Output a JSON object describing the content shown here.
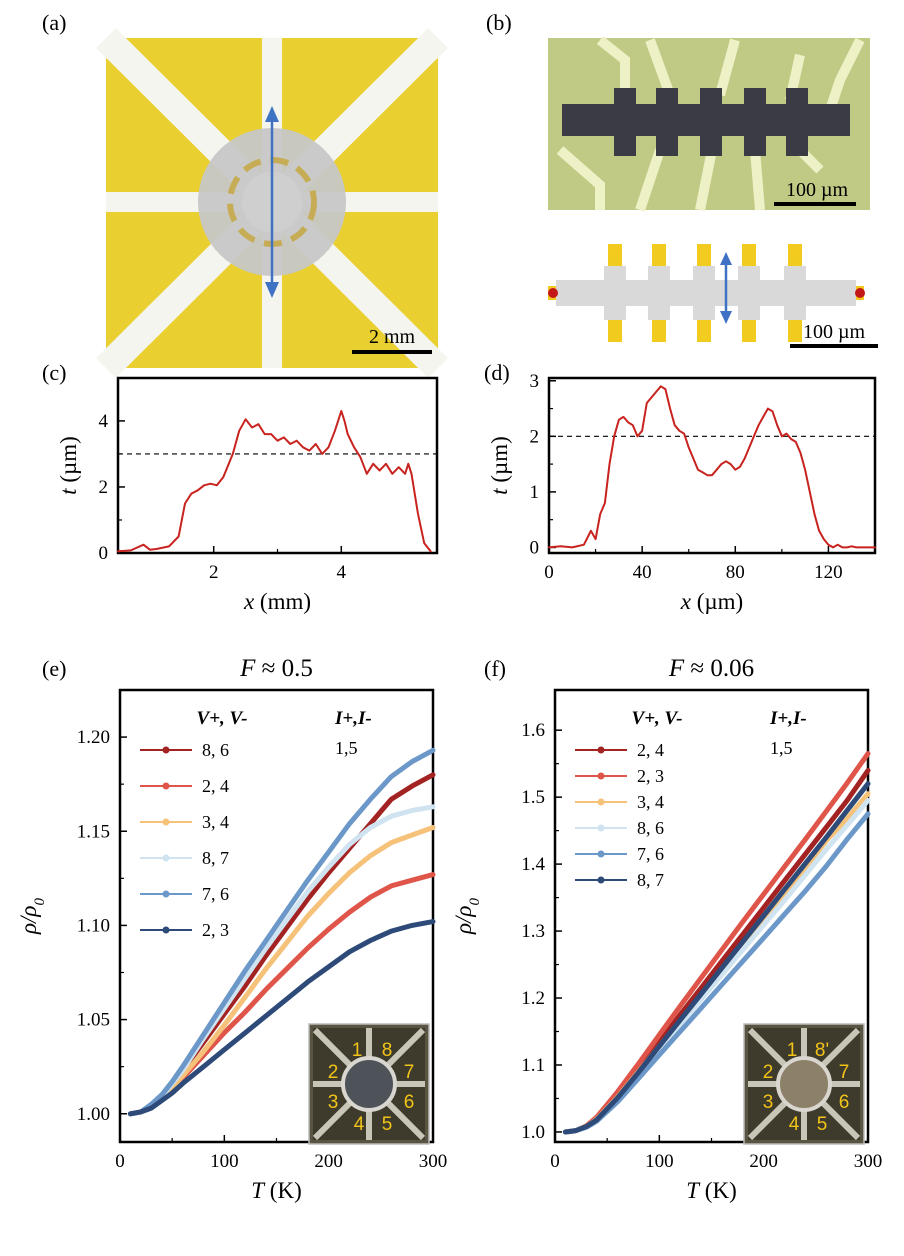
{
  "panels": {
    "a": "(a)",
    "b": "(b)",
    "c": "(c)",
    "d": "(d)",
    "e": "(e)",
    "f": "(f)"
  },
  "scalebars": {
    "a": "2 mm",
    "b_photo": "100 µm",
    "b_schematic": "100 µm"
  },
  "colors": {
    "gold": "#e9cf2f",
    "gray_disk": "#c7c7c7",
    "arrow": "#3f72c4",
    "profile": "#c8231f"
  },
  "chart_data": [
    {
      "id": "c",
      "type": "line",
      "xlabel": "x (mm)",
      "ylabel": "t (µm)",
      "xlim": [
        0.5,
        5.5
      ],
      "ylim": [
        0,
        5.3
      ],
      "xticks": [
        2,
        4
      ],
      "yticks": [
        0,
        2,
        4
      ],
      "xticklabels": [
        "2",
        "4"
      ],
      "yticklabels": [
        "0",
        "2",
        "4"
      ],
      "reference_line": 3,
      "series": [
        {
          "name": "thickness profile",
          "x": [
            0.5,
            0.7,
            0.9,
            1.0,
            1.1,
            1.3,
            1.45,
            1.55,
            1.65,
            1.75,
            1.85,
            1.95,
            2.05,
            2.15,
            2.3,
            2.4,
            2.5,
            2.6,
            2.7,
            2.8,
            2.9,
            3.0,
            3.1,
            3.2,
            3.3,
            3.4,
            3.5,
            3.6,
            3.7,
            3.8,
            3.9,
            4.0,
            4.05,
            4.1,
            4.2,
            4.3,
            4.4,
            4.5,
            4.6,
            4.7,
            4.8,
            4.9,
            5.0,
            5.05,
            5.1,
            5.2,
            5.3,
            5.4
          ],
          "y": [
            0.05,
            0.08,
            0.25,
            0.1,
            0.12,
            0.2,
            0.5,
            1.5,
            1.8,
            1.9,
            2.05,
            2.1,
            2.05,
            2.3,
            3.0,
            3.7,
            4.05,
            3.8,
            3.9,
            3.6,
            3.6,
            3.4,
            3.5,
            3.3,
            3.4,
            3.2,
            3.1,
            3.3,
            3.0,
            3.2,
            3.7,
            4.3,
            4.0,
            3.6,
            3.2,
            2.9,
            2.4,
            2.7,
            2.5,
            2.7,
            2.4,
            2.6,
            2.4,
            2.7,
            2.4,
            1.2,
            0.3,
            0.05
          ]
        }
      ]
    },
    {
      "id": "d",
      "type": "line",
      "xlabel": "x (µm)",
      "ylabel": "t (µm)",
      "xlim": [
        0,
        140
      ],
      "ylim": [
        -0.1,
        3.05
      ],
      "xticks": [
        0,
        40,
        80,
        120
      ],
      "yticks": [
        0,
        1,
        2,
        3
      ],
      "xticklabels": [
        "0",
        "40",
        "80",
        "120"
      ],
      "yticklabels": [
        "0",
        "1",
        "2",
        "3"
      ],
      "reference_line": 2,
      "series": [
        {
          "name": "thickness profile",
          "x": [
            0,
            5,
            10,
            15,
            18,
            20,
            22,
            24,
            26,
            28,
            30,
            32,
            34,
            36,
            38,
            40,
            42,
            44,
            46,
            48,
            50,
            52,
            54,
            56,
            58,
            60,
            62,
            64,
            66,
            68,
            70,
            72,
            74,
            76,
            78,
            80,
            82,
            84,
            86,
            88,
            90,
            92,
            94,
            96,
            98,
            100,
            102,
            104,
            106,
            108,
            110,
            112,
            114,
            116,
            118,
            120,
            122,
            124,
            126,
            128,
            130,
            132,
            135,
            140
          ],
          "y": [
            0.0,
            0.02,
            0.0,
            0.05,
            0.3,
            0.15,
            0.6,
            0.8,
            1.5,
            2.0,
            2.3,
            2.35,
            2.25,
            2.2,
            2.0,
            2.1,
            2.6,
            2.7,
            2.8,
            2.9,
            2.85,
            2.5,
            2.2,
            2.1,
            2.05,
            1.8,
            1.6,
            1.4,
            1.35,
            1.3,
            1.3,
            1.4,
            1.5,
            1.55,
            1.5,
            1.4,
            1.45,
            1.6,
            1.8,
            2.0,
            2.2,
            2.35,
            2.5,
            2.45,
            2.2,
            2.0,
            2.05,
            1.95,
            1.9,
            1.7,
            1.4,
            1.0,
            0.6,
            0.3,
            0.15,
            0.05,
            0.0,
            0.05,
            0.0,
            0.0,
            0.02,
            0.0,
            0.0,
            0.0
          ]
        }
      ]
    },
    {
      "id": "e",
      "type": "line",
      "title": "F ≈ 0.5",
      "xlabel": "T (K)",
      "ylabel": "ρ/ρ0",
      "xlim": [
        0,
        300
      ],
      "ylim": [
        0.985,
        1.225
      ],
      "xticks": [
        0,
        100,
        200,
        300
      ],
      "yticks": [
        1.0,
        1.05,
        1.1,
        1.15,
        1.2
      ],
      "xticklabels": [
        "0",
        "100",
        "200",
        "300"
      ],
      "yticklabels": [
        "1.00",
        "1.05",
        "1.10",
        "1.15",
        "1.20"
      ],
      "legend_headers": [
        "V+, V-",
        "I+,I-"
      ],
      "current_pair": "1,5",
      "series": [
        {
          "name": "8, 6",
          "color": "#a32222",
          "x": [
            10,
            20,
            30,
            40,
            50,
            60,
            80,
            100,
            120,
            140,
            160,
            180,
            200,
            220,
            240,
            260,
            280,
            300
          ],
          "y": [
            1.0,
            1.001,
            1.004,
            1.009,
            1.016,
            1.023,
            1.038,
            1.053,
            1.068,
            1.084,
            1.099,
            1.114,
            1.128,
            1.141,
            1.154,
            1.167,
            1.174,
            1.18
          ]
        },
        {
          "name": "2, 4",
          "color": "#e0554a",
          "x": [
            10,
            20,
            30,
            40,
            50,
            60,
            80,
            100,
            120,
            140,
            160,
            180,
            200,
            220,
            240,
            260,
            280,
            300
          ],
          "y": [
            1.0,
            1.001,
            1.004,
            1.008,
            1.013,
            1.019,
            1.031,
            1.043,
            1.054,
            1.066,
            1.077,
            1.088,
            1.098,
            1.107,
            1.115,
            1.121,
            1.124,
            1.127
          ]
        },
        {
          "name": "3, 4",
          "color": "#f6c27a",
          "x": [
            10,
            20,
            30,
            40,
            50,
            60,
            80,
            100,
            120,
            140,
            160,
            180,
            200,
            220,
            240,
            260,
            280,
            300
          ],
          "y": [
            1.0,
            1.001,
            1.004,
            1.008,
            1.014,
            1.02,
            1.033,
            1.047,
            1.062,
            1.077,
            1.091,
            1.105,
            1.117,
            1.128,
            1.137,
            1.144,
            1.148,
            1.152
          ]
        },
        {
          "name": "8, 7",
          "color": "#cfe3f0",
          "x": [
            10,
            20,
            30,
            40,
            50,
            60,
            80,
            100,
            120,
            140,
            160,
            180,
            200,
            220,
            240,
            260,
            280,
            300
          ],
          "y": [
            1.0,
            1.001,
            1.004,
            1.009,
            1.016,
            1.023,
            1.04,
            1.056,
            1.072,
            1.088,
            1.103,
            1.118,
            1.131,
            1.143,
            1.152,
            1.158,
            1.161,
            1.163
          ]
        },
        {
          "name": "7, 6",
          "color": "#6b98c8",
          "x": [
            10,
            20,
            30,
            40,
            50,
            60,
            80,
            100,
            120,
            140,
            160,
            180,
            200,
            220,
            240,
            260,
            280,
            300
          ],
          "y": [
            1.0,
            1.001,
            1.005,
            1.01,
            1.017,
            1.025,
            1.042,
            1.059,
            1.076,
            1.092,
            1.108,
            1.124,
            1.139,
            1.154,
            1.167,
            1.179,
            1.187,
            1.193
          ]
        },
        {
          "name": "2, 3",
          "color": "#2d4a78",
          "x": [
            10,
            20,
            30,
            40,
            50,
            60,
            80,
            100,
            120,
            140,
            160,
            180,
            200,
            220,
            240,
            260,
            280,
            300
          ],
          "y": [
            1.0,
            1.001,
            1.003,
            1.007,
            1.011,
            1.016,
            1.025,
            1.034,
            1.043,
            1.052,
            1.061,
            1.07,
            1.078,
            1.086,
            1.092,
            1.097,
            1.1,
            1.102
          ]
        }
      ]
    },
    {
      "id": "f",
      "type": "line",
      "title": "F ≈ 0.06",
      "xlabel": "T (K)",
      "ylabel": "ρ/ρ0",
      "xlim": [
        0,
        300
      ],
      "ylim": [
        0.985,
        1.66
      ],
      "xticks": [
        0,
        100,
        200,
        300
      ],
      "yticks": [
        1.0,
        1.1,
        1.2,
        1.3,
        1.4,
        1.5,
        1.6
      ],
      "xticklabels": [
        "0",
        "100",
        "200",
        "300"
      ],
      "yticklabels": [
        "1.0",
        "1.1",
        "1.2",
        "1.3",
        "1.4",
        "1.5",
        "1.6"
      ],
      "legend_headers": [
        "V+, V-",
        "I+,I-"
      ],
      "current_pair": "1,5",
      "series": [
        {
          "name": "2, 4",
          "color": "#a32222",
          "x": [
            10,
            20,
            30,
            40,
            60,
            80,
            100,
            120,
            140,
            160,
            180,
            200,
            220,
            240,
            260,
            280,
            300
          ],
          "y": [
            1.0,
            1.002,
            1.008,
            1.02,
            1.055,
            1.095,
            1.135,
            1.175,
            1.215,
            1.255,
            1.295,
            1.335,
            1.375,
            1.415,
            1.455,
            1.495,
            1.54
          ]
        },
        {
          "name": "2, 3",
          "color": "#e0554a",
          "x": [
            10,
            20,
            30,
            40,
            60,
            80,
            100,
            120,
            140,
            160,
            180,
            200,
            220,
            240,
            260,
            280,
            300
          ],
          "y": [
            1.0,
            1.002,
            1.009,
            1.022,
            1.06,
            1.102,
            1.145,
            1.188,
            1.23,
            1.272,
            1.314,
            1.355,
            1.396,
            1.437,
            1.479,
            1.521,
            1.565
          ]
        },
        {
          "name": "3, 4",
          "color": "#f6c27a",
          "x": [
            10,
            20,
            30,
            40,
            60,
            80,
            100,
            120,
            140,
            160,
            180,
            200,
            220,
            240,
            260,
            280,
            300
          ],
          "y": [
            1.0,
            1.002,
            1.008,
            1.019,
            1.052,
            1.09,
            1.128,
            1.166,
            1.204,
            1.242,
            1.28,
            1.318,
            1.356,
            1.395,
            1.435,
            1.468,
            1.505
          ]
        },
        {
          "name": "8, 6",
          "color": "#cfe3f0",
          "x": [
            10,
            20,
            30,
            40,
            60,
            80,
            100,
            120,
            140,
            160,
            180,
            200,
            220,
            240,
            260,
            280,
            300
          ],
          "y": [
            1.0,
            1.002,
            1.008,
            1.018,
            1.05,
            1.087,
            1.124,
            1.161,
            1.198,
            1.235,
            1.272,
            1.309,
            1.346,
            1.384,
            1.422,
            1.458,
            1.495
          ]
        },
        {
          "name": "7, 6",
          "color": "#6b98c8",
          "x": [
            10,
            20,
            30,
            40,
            60,
            80,
            100,
            120,
            140,
            160,
            180,
            200,
            220,
            240,
            260,
            280,
            300
          ],
          "y": [
            1.0,
            1.002,
            1.007,
            1.016,
            1.045,
            1.08,
            1.115,
            1.15,
            1.185,
            1.22,
            1.255,
            1.29,
            1.325,
            1.36,
            1.397,
            1.437,
            1.475
          ]
        },
        {
          "name": "8, 7",
          "color": "#2d4a78",
          "x": [
            10,
            20,
            30,
            40,
            60,
            80,
            100,
            120,
            140,
            160,
            180,
            200,
            220,
            240,
            260,
            280,
            300
          ],
          "y": [
            1.0,
            1.002,
            1.008,
            1.018,
            1.051,
            1.089,
            1.128,
            1.167,
            1.206,
            1.245,
            1.284,
            1.323,
            1.362,
            1.401,
            1.44,
            1.48,
            1.52
          ]
        }
      ]
    }
  ],
  "insets": {
    "e": {
      "labels": [
        "1",
        "8",
        "2",
        "7",
        "3",
        "6",
        "4",
        "5"
      ]
    },
    "f": {
      "labels": [
        "1",
        "8'",
        "2",
        "7",
        "3",
        "6",
        "4",
        "5"
      ]
    }
  }
}
